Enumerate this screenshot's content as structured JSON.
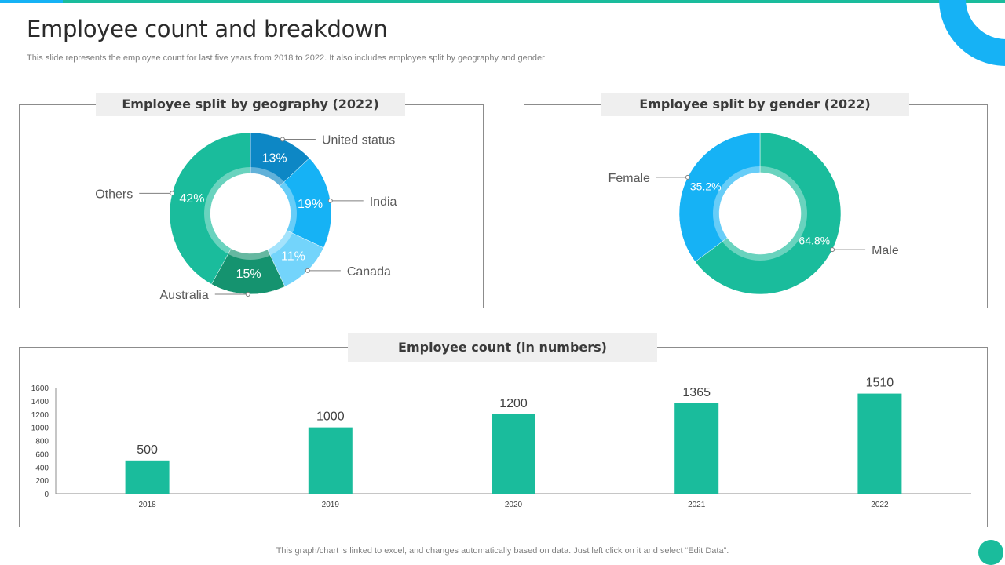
{
  "header": {
    "title": "Employee count and breakdown",
    "subtitle": "This slide represents the employee count for last five years from 2018 to 2022. It also includes employee split by geography and gender"
  },
  "footer": {
    "note": "This graph/chart is linked to excel,  and changes automatically based on data. Just left click on it and select “Edit Data”."
  },
  "colors": {
    "green": "#1ABC9C",
    "blue": "#16B2F5",
    "dark_blue": "#0D87C5",
    "light_blue": "#73D4FB",
    "dark_green": "#15936F",
    "axis": "#8c8c8c"
  },
  "chart_data": [
    {
      "type": "pie",
      "variant": "donut",
      "title": "Employee split by geography (2022)",
      "categories": [
        "United status",
        "India",
        "Canada",
        "Australia",
        "Others"
      ],
      "values": [
        13,
        19,
        11,
        15,
        42
      ],
      "labels": [
        "13%",
        "19%",
        "11%",
        "15%",
        "42%"
      ],
      "colors": [
        "#0D87C5",
        "#16B2F5",
        "#73D4FB",
        "#15936F",
        "#1ABC9C"
      ]
    },
    {
      "type": "pie",
      "variant": "donut",
      "title": "Employee split by gender (2022)",
      "categories": [
        "Male",
        "Female"
      ],
      "values": [
        64.8,
        35.2
      ],
      "labels": [
        "64.8%",
        "35.2%"
      ],
      "colors": [
        "#1ABC9C",
        "#16B2F5"
      ]
    },
    {
      "type": "bar",
      "title": "Employee count (in numbers)",
      "categories": [
        "2018",
        "2019",
        "2020",
        "2021",
        "2022"
      ],
      "values": [
        500,
        1000,
        1200,
        1365,
        1510
      ],
      "yticks": [
        0,
        200,
        400,
        600,
        800,
        1000,
        1200,
        1400,
        1600
      ],
      "ylim": [
        0,
        1600
      ],
      "xlabel": "",
      "ylabel": "",
      "color": "#1ABC9C"
    }
  ]
}
